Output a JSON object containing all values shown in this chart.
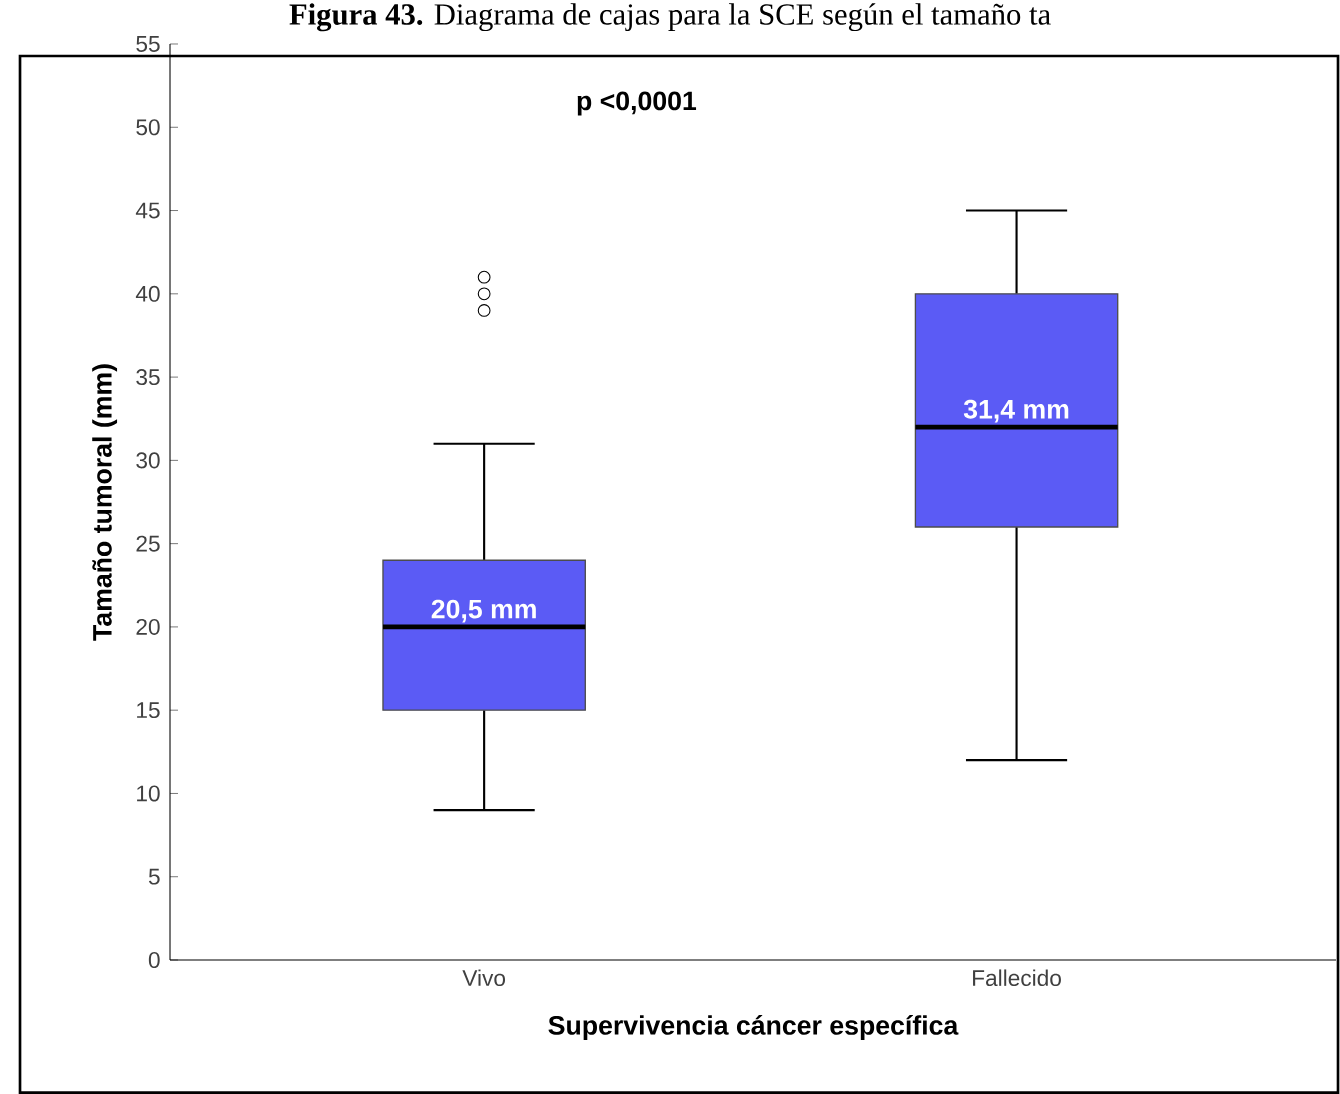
{
  "chart_data": {
    "type": "box",
    "title": "**Figura 43.** Diagrama de cajas para la SCE según el tamaño ta",
    "xlabel": "Supervivencia cáncer específica",
    "ylabel": "Tamaño tumoral (mm)",
    "categories": [
      "Vivo",
      "Fallecido"
    ],
    "color": "#5b5bf5",
    "boxes": [
      {
        "low": 9,
        "q1": 15,
        "median": 20,
        "q3": 24,
        "high": 31,
        "outliers": [
          41,
          40,
          39
        ]
      },
      {
        "low": 12,
        "q1": 26,
        "median": 32,
        "q3": 40,
        "high": 45
      }
    ],
    "ylim": [
      0,
      55
    ],
    "yticks": [
      0,
      5,
      10,
      15,
      20,
      25,
      30,
      35,
      40,
      45,
      50,
      55
    ],
    "annotations": [
      "p <0,0001",
      {
        "text": "20,5 mm",
        "x": "Vivo",
        "y": 20
      },
      {
        "text": "31,4 mm",
        "x": "Fallecido",
        "y": 32
      }
    ]
  }
}
